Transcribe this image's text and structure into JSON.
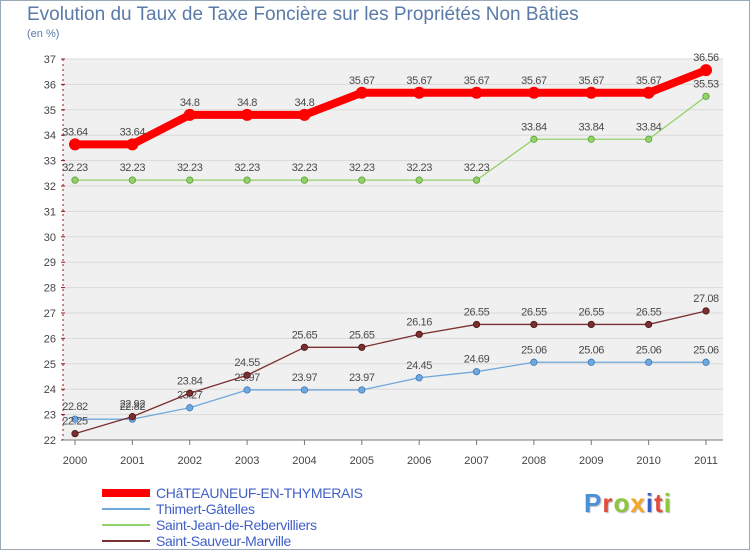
{
  "title": "Evolution du Taux de Taxe Foncière sur les Propriétés Non Bâties",
  "unit": "(en %)",
  "brand": {
    "text": "Proxiti",
    "letters": [
      "P",
      "r",
      "o",
      "x",
      "i",
      "t",
      "i"
    ],
    "colors": [
      "#4a90d9",
      "#e24a3a",
      "#8cc63f",
      "#f5a623",
      "#3a5fc8",
      "#e24a3a",
      "#8cc63f"
    ]
  },
  "chart_data": {
    "type": "line",
    "title": "Evolution du Taux de Taxe Foncière sur les Propriétés Non Bâties",
    "ylabel": "(en %)",
    "x": [
      "2000",
      "2001",
      "2002",
      "2003",
      "2004",
      "2005",
      "2006",
      "2007",
      "2008",
      "2009",
      "2010",
      "2011"
    ],
    "ylim": [
      22,
      37
    ],
    "yticks": [
      "22",
      "23",
      "24",
      "25",
      "26",
      "27",
      "28",
      "29",
      "30",
      "31",
      "32",
      "33",
      "34",
      "35",
      "36",
      "37"
    ],
    "legend_position": "bottom-left",
    "series": [
      {
        "name": "CHâTEAUNEUF-EN-THYMERAIS",
        "color": "#ff0000",
        "values": [
          33.64,
          33.64,
          34.8,
          34.8,
          34.8,
          35.67,
          35.67,
          35.67,
          35.67,
          35.67,
          35.67,
          36.56
        ],
        "labels": [
          "33.64",
          "33.64",
          "34.8",
          "34.8",
          "34.8",
          "35.67",
          "35.67",
          "35.67",
          "35.67",
          "35.67",
          "35.67",
          "36.56"
        ]
      },
      {
        "name": "Thimert-Gâtelles",
        "color": "#6fa8dc",
        "values": [
          22.82,
          22.82,
          23.27,
          23.97,
          23.97,
          23.97,
          24.45,
          24.69,
          25.06,
          25.06,
          25.06,
          25.06
        ],
        "labels": [
          "22.82",
          "22.82",
          "23.27",
          "23.97",
          "23.97",
          "23.97",
          "24.45",
          "24.69",
          "25.06",
          "25.06",
          "25.06",
          "25.06"
        ]
      },
      {
        "name": "Saint-Jean-de-Rebervilliers",
        "color": "#93d16a",
        "values": [
          32.23,
          32.23,
          32.23,
          32.23,
          32.23,
          32.23,
          32.23,
          32.23,
          33.84,
          33.84,
          33.84,
          35.53
        ],
        "labels": [
          "32.23",
          "32.23",
          "32.23",
          "32.23",
          "32.23",
          "32.23",
          "32.23",
          "32.23",
          "33.84",
          "33.84",
          "33.84",
          "35.53"
        ]
      },
      {
        "name": "Saint-Sauveur-Marville",
        "color": "#7a3030",
        "values": [
          22.25,
          22.92,
          23.84,
          24.55,
          25.65,
          25.65,
          26.16,
          26.55,
          26.55,
          26.55,
          26.55,
          27.08
        ],
        "labels": [
          "22.25",
          "22.92",
          "23.84",
          "24.55",
          "25.65",
          "25.65",
          "26.16",
          "26.55",
          "26.55",
          "26.55",
          "26.55",
          "27.08"
        ]
      }
    ]
  }
}
